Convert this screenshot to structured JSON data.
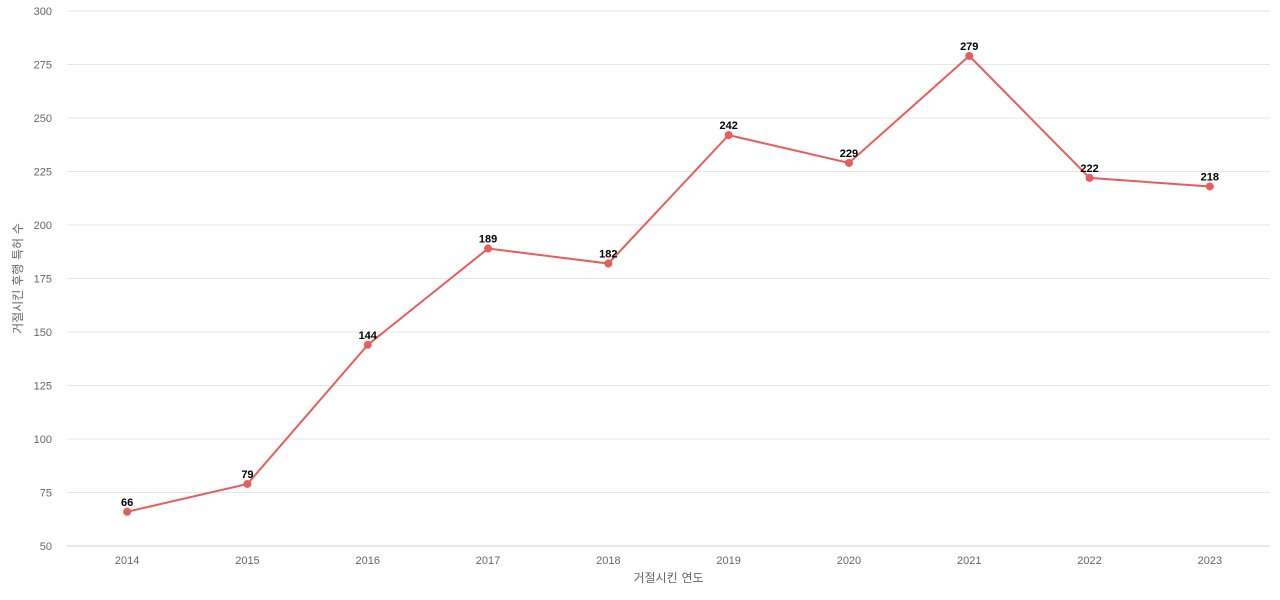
{
  "chart_data": {
    "type": "line",
    "title": "",
    "xlabel": "거절시킨 연도",
    "ylabel": "거절시킨 후행 특허 수",
    "categories": [
      "2014",
      "2015",
      "2016",
      "2017",
      "2018",
      "2019",
      "2020",
      "2021",
      "2022",
      "2023"
    ],
    "series": [
      {
        "values": [
          66,
          79,
          144,
          189,
          182,
          242,
          229,
          279,
          222,
          218
        ],
        "color": "#e85c5c"
      }
    ],
    "ylim": [
      50,
      300
    ],
    "yticks": [
      "50",
      "75",
      "100",
      "125",
      "150",
      "175",
      "200",
      "225",
      "250",
      "275",
      "300"
    ],
    "data_labels": [
      "66",
      "79",
      "144",
      "189",
      "182",
      "242",
      "229",
      "279",
      "222",
      "218"
    ],
    "grid": true,
    "legend": "none"
  }
}
